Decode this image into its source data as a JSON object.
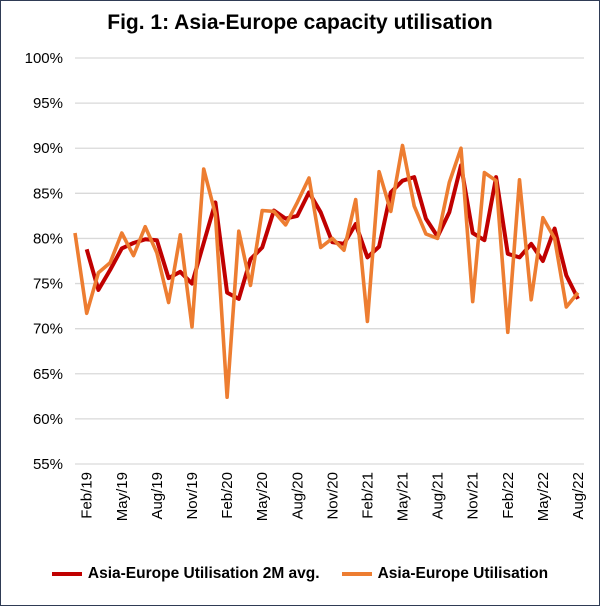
{
  "chart_data": {
    "type": "line",
    "title": "Fig. 1: Asia-Europe capacity utilisation",
    "xlabel": "",
    "ylabel": "",
    "x": [
      "Jan/19",
      "Feb/19",
      "Mar/19",
      "Apr/19",
      "May/19",
      "Jun/19",
      "Jul/19",
      "Aug/19",
      "Sep/19",
      "Oct/19",
      "Nov/19",
      "Dec/19",
      "Jan/20",
      "Feb/20",
      "Mar/20",
      "Apr/20",
      "May/20",
      "Jun/20",
      "Jul/20",
      "Aug/20",
      "Sep/20",
      "Oct/20",
      "Nov/20",
      "Dec/20",
      "Jan/21",
      "Feb/21",
      "Mar/21",
      "Apr/21",
      "May/21",
      "Jun/21",
      "Jul/21",
      "Aug/21",
      "Sep/21",
      "Oct/21",
      "Nov/21",
      "Dec/21",
      "Jan/22",
      "Feb/22",
      "Mar/22",
      "Apr/22",
      "May/22",
      "Jun/22",
      "Jul/22",
      "Aug/22"
    ],
    "x_tick_labels": [
      "Feb/19",
      "May/19",
      "Aug/19",
      "Nov/19",
      "Feb/20",
      "May/20",
      "Aug/20",
      "Nov/20",
      "Feb/21",
      "May/21",
      "Aug/21",
      "Nov/21",
      "Feb/22",
      "May/22",
      "Aug/22"
    ],
    "y_tick_labels": [
      "55%",
      "60%",
      "65%",
      "70%",
      "75%",
      "80%",
      "85%",
      "90%",
      "95%",
      "100%"
    ],
    "ylim": [
      55,
      100
    ],
    "grid": true,
    "legend_position": "bottom",
    "series": [
      {
        "name": "Asia-Europe Utilisation 2M avg.",
        "color": "#c00000",
        "values": [
          null,
          78.8,
          74.3,
          76.5,
          78.9,
          79.5,
          79.9,
          79.8,
          75.6,
          76.3,
          75.0,
          79.5,
          84.0,
          74.0,
          73.3,
          77.7,
          79.0,
          83.1,
          82.2,
          82.5,
          85.1,
          82.9,
          79.6,
          79.4,
          81.6,
          77.9,
          79.1,
          85.1,
          86.4,
          86.8,
          82.2,
          80.2,
          82.9,
          88.1,
          80.6,
          79.8,
          86.8,
          78.3,
          77.9,
          79.4,
          77.5,
          81.1,
          75.9,
          73.3
        ]
      },
      {
        "name": "Asia-Europe Utilisation",
        "color": "#ed7d31",
        "values": [
          80.6,
          71.7,
          76.2,
          77.3,
          80.6,
          78.1,
          81.3,
          78.4,
          72.9,
          80.4,
          70.2,
          87.7,
          82.7,
          62.4,
          80.8,
          74.8,
          83.1,
          83.0,
          81.5,
          84.0,
          86.7,
          79.0,
          80.0,
          78.7,
          84.3,
          70.8,
          87.4,
          83.0,
          90.3,
          83.6,
          80.5,
          80.0,
          86.2,
          90.0,
          73.0,
          87.3,
          86.4,
          69.6,
          86.5,
          73.2,
          82.3,
          80.0,
          72.4,
          74.0
        ]
      }
    ]
  }
}
